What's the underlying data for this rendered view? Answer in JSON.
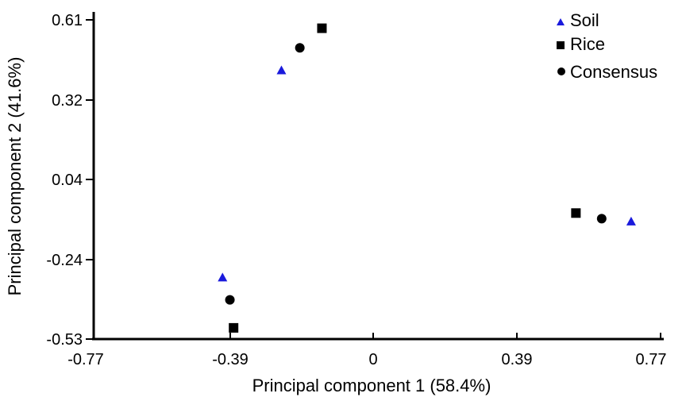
{
  "chart_data": {
    "type": "scatter",
    "title": "",
    "xlabel": "Principal component 1 (58.4%)",
    "ylabel": "Principal component 2 (41.6%)",
    "xlim": [
      -0.77,
      0.77
    ],
    "ylim": [
      -0.53,
      0.61
    ],
    "xticks": [
      "-0.77",
      "-0.39",
      "0",
      "0.39",
      "0.77"
    ],
    "yticks": [
      "0.61",
      "0.32",
      "0.04",
      "-0.24",
      "-0.53"
    ],
    "grid": false,
    "legend_position": "top-right",
    "series": [
      {
        "name": "Soil",
        "marker": "triangle",
        "color": "#1a1adc",
        "points": [
          {
            "x": -0.26,
            "y": 0.43
          },
          {
            "x": -0.42,
            "y": -0.31
          },
          {
            "x": 0.69,
            "y": -0.11
          }
        ]
      },
      {
        "name": "Rice",
        "marker": "square",
        "color": "#000000",
        "points": [
          {
            "x": -0.15,
            "y": 0.58
          },
          {
            "x": -0.39,
            "y": -0.49
          },
          {
            "x": 0.54,
            "y": -0.08
          }
        ]
      },
      {
        "name": "Consensus",
        "marker": "circle",
        "color": "#000000",
        "points": [
          {
            "x": -0.21,
            "y": 0.51
          },
          {
            "x": -0.4,
            "y": -0.39
          },
          {
            "x": 0.61,
            "y": -0.1
          }
        ]
      }
    ]
  }
}
